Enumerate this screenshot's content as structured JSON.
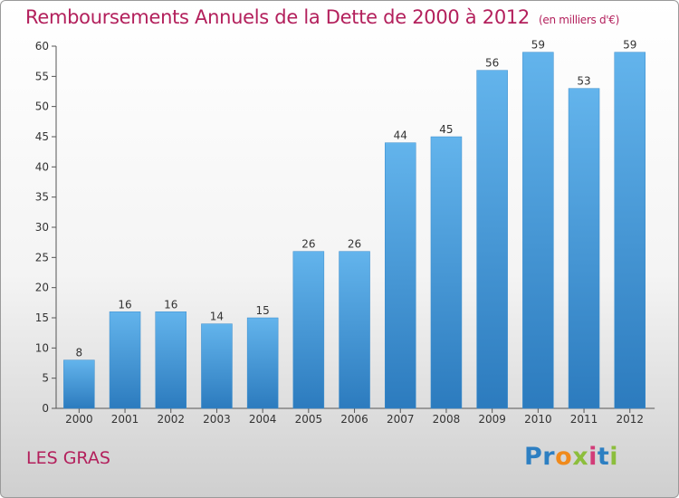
{
  "header": {
    "title": "Remboursements Annuels de la Dette de 2000 à 2012",
    "unit": "(en milliers d'€)"
  },
  "place_label": "LES GRAS",
  "brand": {
    "name": "Proxiti",
    "letters": [
      "P",
      "r",
      "o",
      "x",
      "i",
      "t",
      "i"
    ],
    "letter_colors": [
      "#2d7fc2",
      "#2d7fc2",
      "#f08a1c",
      "#8cbe3c",
      "#d23c78",
      "#2d7fc2",
      "#8cbe3c"
    ]
  },
  "colors": {
    "bar": "#4a9fdc",
    "bar_light": "#63b4ec",
    "bar_dark": "#2c7bbe",
    "title": "#b3205c",
    "axis": "#555555"
  },
  "chart_data": {
    "type": "bar",
    "title": "Remboursements Annuels de la Dette de 2000 à 2012",
    "xlabel": "",
    "ylabel": "",
    "categories": [
      "2000",
      "2001",
      "2002",
      "2003",
      "2004",
      "2005",
      "2006",
      "2007",
      "2008",
      "2009",
      "2010",
      "2011",
      "2012"
    ],
    "values": [
      8,
      16,
      16,
      14,
      15,
      26,
      26,
      44,
      45,
      56,
      59,
      53,
      59
    ],
    "ylim": [
      0,
      60
    ],
    "yticks": [
      0,
      5,
      10,
      15,
      20,
      25,
      30,
      35,
      40,
      45,
      50,
      55,
      60
    ],
    "grid": false,
    "legend": "none"
  }
}
